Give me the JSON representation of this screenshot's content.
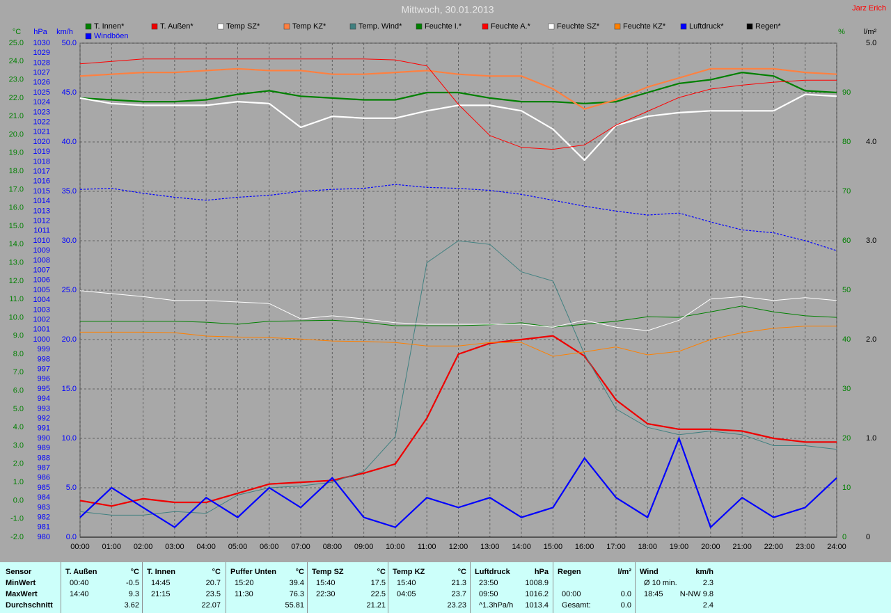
{
  "chart_data": {
    "type": "line",
    "title": "Mittwoch, 30.01.2013",
    "author": "Jarz Erich",
    "x": [
      "00:00",
      "01:00",
      "02:00",
      "03:00",
      "04:00",
      "05:00",
      "06:00",
      "07:00",
      "08:00",
      "09:00",
      "10:00",
      "11:00",
      "12:00",
      "13:00",
      "14:00",
      "15:00",
      "16:00",
      "17:00",
      "18:00",
      "19:00",
      "20:00",
      "21:00",
      "22:00",
      "23:00",
      "24:00"
    ],
    "ylabel": "°C",
    "y2label": "%",
    "y3label": "hPa",
    "y4label": "km/h",
    "y5label": "l/m²",
    "ylim": [
      -2,
      25
    ],
    "yticks": [
      {
        "value": -2,
        "label": "-2.0"
      },
      {
        "value": -1,
        "label": "-1.0"
      },
      {
        "value": 0,
        "label": "0.0"
      },
      {
        "value": 1,
        "label": "1.0"
      },
      {
        "value": 2,
        "label": "2.0"
      },
      {
        "value": 3,
        "label": "3.0"
      },
      {
        "value": 4,
        "label": "4.0"
      },
      {
        "value": 5,
        "label": "5.0"
      },
      {
        "value": 6,
        "label": "6.0"
      },
      {
        "value": 7,
        "label": "7.0"
      },
      {
        "value": 8,
        "label": "8.0"
      },
      {
        "value": 9,
        "label": "9.0"
      },
      {
        "value": 10,
        "label": "10.0"
      },
      {
        "value": 11,
        "label": "11.0"
      },
      {
        "value": 12,
        "label": "12.0"
      },
      {
        "value": 13,
        "label": "13.0"
      },
      {
        "value": 14,
        "label": "14.0"
      },
      {
        "value": 15,
        "label": "15.0"
      },
      {
        "value": 16,
        "label": "16.0"
      },
      {
        "value": 17,
        "label": "17.0"
      },
      {
        "value": 18,
        "label": "18.0"
      },
      {
        "value": 19,
        "label": "19.0"
      },
      {
        "value": 20,
        "label": "20.0"
      },
      {
        "value": 21,
        "label": "21.0"
      },
      {
        "value": 22,
        "label": "22.0"
      },
      {
        "value": 23,
        "label": "23.0"
      },
      {
        "value": 24,
        "label": "24.0"
      },
      {
        "value": 25,
        "label": "25.0"
      }
    ],
    "y2lim": [
      0,
      100
    ],
    "y2ticks": [
      0,
      10,
      20,
      30,
      40,
      50,
      60,
      70,
      80,
      90
    ],
    "y3lim": [
      980,
      1030
    ],
    "y3ticks": [
      980,
      981,
      982,
      983,
      984,
      985,
      986,
      987,
      988,
      989,
      990,
      991,
      992,
      993,
      994,
      995,
      996,
      997,
      998,
      999,
      1000,
      1001,
      1002,
      1003,
      1004,
      1005,
      1006,
      1007,
      1008,
      1009,
      1010,
      1011,
      1012,
      1013,
      1014,
      1015,
      1016,
      1017,
      1018,
      1019,
      1020,
      1021,
      1022,
      1023,
      1024,
      1025,
      1026,
      1027,
      1028,
      1029,
      1030
    ],
    "y4lim": [
      0,
      50
    ],
    "y4ticks": [
      {
        "value": 0,
        "label": "0.0"
      },
      {
        "value": 5,
        "label": "5.0"
      },
      {
        "value": 10,
        "label": "10.0"
      },
      {
        "value": 15,
        "label": "15.0"
      },
      {
        "value": 20,
        "label": "20.0"
      },
      {
        "value": 25,
        "label": "25.0"
      },
      {
        "value": 30,
        "label": "30.0"
      },
      {
        "value": 35,
        "label": "35.0"
      },
      {
        "value": 40,
        "label": "40.0"
      },
      {
        "value": 45,
        "label": "45.0"
      },
      {
        "value": 50,
        "label": "50.0"
      }
    ],
    "y5lim": [
      0,
      5
    ],
    "y5ticks": [
      0,
      {
        "value": 1,
        "label": "1.0"
      },
      {
        "value": 2,
        "label": "2.0"
      },
      {
        "value": 3,
        "label": "3.0"
      },
      {
        "value": 4,
        "label": "4.0"
      },
      {
        "value": 5,
        "label": "5.0"
      }
    ],
    "grid": true,
    "series": [
      {
        "name": "T. Innen*",
        "color": "#008000",
        "axis": "y",
        "style": "thick",
        "values": [
          22.0,
          21.9,
          21.8,
          21.8,
          21.9,
          22.2,
          22.4,
          22.1,
          22.0,
          21.9,
          21.9,
          22.3,
          22.3,
          22.0,
          21.8,
          21.8,
          21.7,
          21.8,
          22.3,
          22.8,
          23.0,
          23.4,
          23.2,
          22.4,
          22.3
        ]
      },
      {
        "name": "T. Außen*",
        "color": "#ee0000",
        "axis": "y",
        "style": "thick",
        "values": [
          0.0,
          -0.3,
          0.1,
          -0.1,
          -0.1,
          0.4,
          0.9,
          1.0,
          1.1,
          1.5,
          2.0,
          4.5,
          8.0,
          8.6,
          8.8,
          9.0,
          7.9,
          5.5,
          4.2,
          3.9,
          3.9,
          3.8,
          3.4,
          3.2,
          3.2
        ]
      },
      {
        "name": "Temp SZ*",
        "color": "#ffffff",
        "axis": "y",
        "style": "thick",
        "values": [
          22.0,
          21.7,
          21.6,
          21.6,
          21.6,
          21.8,
          21.7,
          20.4,
          21.0,
          20.9,
          20.9,
          21.3,
          21.6,
          21.6,
          21.3,
          20.3,
          18.6,
          20.5,
          21.0,
          21.2,
          21.3,
          21.3,
          21.3,
          22.2,
          22.1
        ]
      },
      {
        "name": "Temp KZ*",
        "color": "#ff8040",
        "axis": "y",
        "style": "thick",
        "values": [
          23.2,
          23.3,
          23.4,
          23.4,
          23.5,
          23.6,
          23.5,
          23.5,
          23.3,
          23.3,
          23.4,
          23.5,
          23.3,
          23.2,
          23.2,
          22.5,
          21.4,
          21.9,
          22.6,
          23.1,
          23.6,
          23.6,
          23.6,
          23.4,
          23.3
        ]
      },
      {
        "name": "Temp. Wind*",
        "color": "#408080",
        "axis": "y",
        "style": "thin",
        "values": [
          -0.6,
          -0.8,
          -0.8,
          -0.6,
          -0.7,
          0.3,
          0.7,
          0.8,
          1.0,
          1.6,
          3.5,
          13.0,
          14.2,
          14.0,
          12.5,
          12.0,
          8.0,
          5.0,
          4.0,
          3.6,
          3.8,
          3.6,
          3.0,
          3.0,
          2.8
        ]
      },
      {
        "name": "Feuchte I.*",
        "color": "#008000",
        "axis": "y2",
        "style": "thin",
        "values": [
          43.7,
          43.7,
          43.7,
          43.7,
          43.5,
          43.1,
          43.7,
          43.8,
          43.9,
          43.5,
          42.8,
          42.8,
          42.8,
          43.0,
          43.4,
          42.5,
          43.1,
          43.7,
          44.6,
          44.5,
          45.6,
          46.8,
          45.6,
          44.8,
          44.5
        ]
      },
      {
        "name": "Feuchte A.*",
        "color": "#ff0000",
        "axis": "y2",
        "style": "thin",
        "values": [
          95.8,
          96.3,
          96.8,
          96.8,
          96.8,
          96.8,
          96.8,
          96.8,
          96.8,
          96.8,
          96.6,
          95.4,
          87.6,
          81.3,
          78.9,
          78.5,
          79.4,
          83.4,
          86.2,
          89.0,
          90.7,
          91.5,
          92.1,
          92.5,
          92.5
        ]
      },
      {
        "name": "Feuchte SZ*",
        "color": "#ffffff",
        "axis": "y2",
        "style": "thin",
        "values": [
          49.9,
          49.3,
          48.7,
          47.9,
          47.9,
          47.6,
          47.3,
          44.2,
          44.8,
          44.2,
          43.4,
          43.1,
          43.1,
          43.1,
          43.1,
          42.5,
          43.9,
          42.5,
          41.8,
          43.9,
          48.2,
          48.7,
          47.9,
          48.5,
          47.9
        ]
      },
      {
        "name": "Feuchte KZ*",
        "color": "#ff8000",
        "axis": "y2",
        "style": "thin",
        "values": [
          41.5,
          41.5,
          41.5,
          41.4,
          40.7,
          40.5,
          40.4,
          40.1,
          39.7,
          39.6,
          39.4,
          38.7,
          38.7,
          39.4,
          39.4,
          36.6,
          37.5,
          38.5,
          36.9,
          37.6,
          40.0,
          41.4,
          42.3,
          42.7,
          42.7
        ]
      },
      {
        "name": "Luftdruck*",
        "color": "#0000ff",
        "axis": "y3",
        "style": "dashed",
        "values": [
          1015.2,
          1015.3,
          1014.8,
          1014.4,
          1014.1,
          1014.4,
          1014.6,
          1015.0,
          1015.2,
          1015.3,
          1015.7,
          1015.4,
          1015.3,
          1015.1,
          1014.7,
          1014.1,
          1013.5,
          1013.0,
          1012.6,
          1012.8,
          1011.9,
          1011.1,
          1010.8,
          1010.0,
          1009.0
        ]
      },
      {
        "name": "Regen*",
        "color": "#000000",
        "axis": "y5",
        "style": "thin",
        "values": [
          0,
          0,
          0,
          0,
          0,
          0,
          0,
          0,
          0,
          0,
          0,
          0,
          0,
          0,
          0,
          0,
          0,
          0,
          0,
          0,
          0,
          0,
          0,
          0,
          0
        ]
      },
      {
        "name": "Windböen",
        "color": "#0000ff",
        "axis": "y4",
        "style": "thick",
        "values": [
          2,
          5,
          3,
          1,
          4,
          2,
          5,
          3,
          6,
          2,
          1,
          4,
          3,
          4,
          2,
          3,
          8,
          4,
          2,
          10,
          1,
          4,
          2,
          3,
          6
        ]
      }
    ]
  },
  "stats": {
    "row_labels": [
      "Sensor",
      "MinWert",
      "MaxWert",
      "Durchschnitt"
    ],
    "groups": [
      {
        "name": "T. Außen",
        "unit": "°C",
        "min": {
          "time": "00:40",
          "value": "-0.5"
        },
        "max": {
          "time": "14:40",
          "value": "9.3"
        },
        "avg": {
          "value": "3.62"
        }
      },
      {
        "name": "T. Innen",
        "unit": "°C",
        "min": {
          "time": "14:45",
          "value": "20.7"
        },
        "max": {
          "time": "21:15",
          "value": "23.5"
        },
        "avg": {
          "value": "22.07"
        }
      },
      {
        "name": "Puffer Unten",
        "unit": "°C",
        "min": {
          "time": "15:20",
          "value": "39.4"
        },
        "max": {
          "time": "11:30",
          "value": "76.3"
        },
        "avg": {
          "value": "55.81"
        }
      },
      {
        "name": "Temp SZ",
        "unit": "°C",
        "min": {
          "time": "15:40",
          "value": "17.5"
        },
        "max": {
          "time": "22:30",
          "value": "22.5"
        },
        "avg": {
          "value": "21.21"
        }
      },
      {
        "name": "Temp KZ",
        "unit": "°C",
        "min": {
          "time": "15:40",
          "value": "21.3"
        },
        "max": {
          "time": "04:05",
          "value": "23.7"
        },
        "avg": {
          "value": "23.23"
        }
      },
      {
        "name": "Luftdruck",
        "unit": "hPa",
        "min": {
          "time": "23:50",
          "value": "1008.9"
        },
        "max": {
          "time": "09:50",
          "value": "1016.2"
        },
        "avg": {
          "time": "^1.3hPa/h",
          "value": "1013.4"
        }
      },
      {
        "name": "Regen",
        "unit": "l/m²",
        "max": {
          "time": "00:00",
          "value": "0.0"
        },
        "avg": {
          "time": "Gesamt:",
          "value": "0.0"
        }
      },
      {
        "name": "Wind",
        "unit": "km/h",
        "min": {
          "time": "Ø 10 min.",
          "value": "2.3"
        },
        "max": {
          "time": "18:45",
          "value": "N-NW 9.8"
        },
        "avg": {
          "value": "2.4"
        }
      }
    ]
  }
}
